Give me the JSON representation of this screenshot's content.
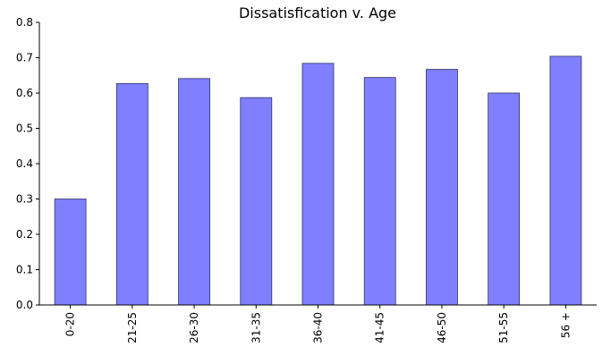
{
  "chart_data": {
    "type": "bar",
    "title": "Dissatisfication v. Age",
    "xlabel": "",
    "ylabel": "",
    "categories": [
      "0-20",
      "21-25",
      "26-30",
      "31-35",
      "36-40",
      "41-45",
      "46-50",
      "51-55",
      "56 +"
    ],
    "values": [
      0.3,
      0.627,
      0.641,
      0.587,
      0.684,
      0.644,
      0.667,
      0.6,
      0.704
    ],
    "ylim": [
      0,
      0.8
    ],
    "yticks": [
      "0.0",
      "0.1",
      "0.2",
      "0.3",
      "0.4",
      "0.5",
      "0.6",
      "0.7",
      "0.8"
    ],
    "grid": false,
    "colors": {
      "bar": "#7f7fff",
      "edge": "#333366"
    }
  }
}
